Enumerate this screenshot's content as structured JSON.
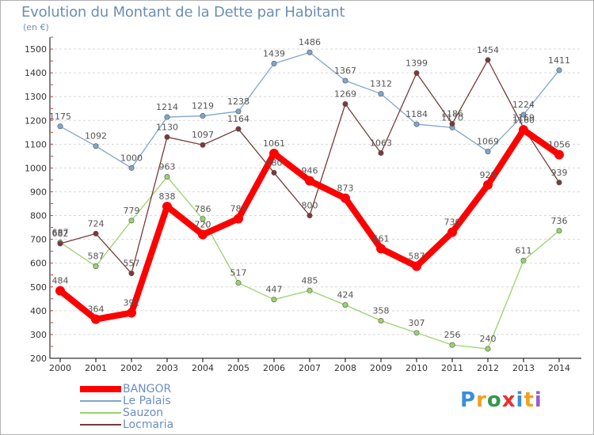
{
  "title": "Evolution du Montant de la Dette par Habitant",
  "unit": "(en €)",
  "logo": "Proxiti",
  "chart_data": {
    "type": "line",
    "title": "Evolution du Montant de la Dette par Habitant",
    "ylabel": "(en €)",
    "xlabel": "",
    "x": [
      "2000",
      "2001",
      "2002",
      "2003",
      "2004",
      "2005",
      "2006",
      "2007",
      "2008",
      "2009",
      "2010",
      "2011",
      "2012",
      "2013",
      "2014"
    ],
    "yticks": [
      200,
      300,
      400,
      500,
      600,
      700,
      800,
      900,
      1000,
      1100,
      1200,
      1300,
      1400,
      1500
    ],
    "ylim": [
      200,
      1550
    ],
    "grid": "horizontal dashed",
    "legend_position": "bottom-left",
    "series": [
      {
        "name": "BANGOR",
        "color": "#ff0000",
        "values": [
          484,
          364,
          391,
          838,
          720,
          787,
          1061,
          946,
          873,
          661,
          587,
          730,
          929,
          1160,
          1056
        ]
      },
      {
        "name": "Le Palais",
        "color": "#7fa6cc",
        "values": [
          1175,
          1092,
          1000,
          1214,
          1219,
          1238,
          1439,
          1486,
          1367,
          1312,
          1184,
          1170,
          1069,
          1224,
          1411
        ]
      },
      {
        "name": "Sauzon",
        "color": "#99d36b",
        "values": [
          687,
          587,
          779,
          963,
          786,
          517,
          447,
          485,
          424,
          358,
          307,
          256,
          240,
          611,
          736
        ]
      },
      {
        "name": "Locmaria",
        "color": "#7a3a3a",
        "values": [
          682,
          724,
          557,
          1130,
          1097,
          1164,
          980,
          800,
          1269,
          1063,
          1399,
          1186,
          1454,
          1169,
          939
        ]
      }
    ]
  }
}
